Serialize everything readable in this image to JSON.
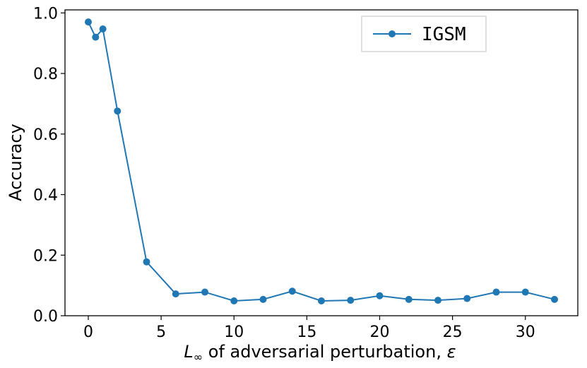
{
  "chart_data": {
    "type": "line",
    "title": "",
    "xlabel": {
      "symbol": "L",
      "subscript": "∞",
      "text": " of adversarial perturbation, ",
      "var": "ε"
    },
    "ylabel": "Accuracy",
    "xlim": [
      -1.6,
      33.6
    ],
    "ylim": [
      0.0,
      1.01
    ],
    "xticks": [
      0,
      5,
      10,
      15,
      20,
      25,
      30
    ],
    "xtick_labels": [
      "0",
      "5",
      "10",
      "15",
      "20",
      "25",
      "30"
    ],
    "yticks": [
      0.0,
      0.2,
      0.4,
      0.6,
      0.8,
      1.0
    ],
    "ytick_labels": [
      "0.0",
      "0.2",
      "0.4",
      "0.6",
      "0.8",
      "1.0"
    ],
    "grid": false,
    "legend_position": "top-right",
    "series": [
      {
        "name": "IGSM",
        "color": "#1f77b4",
        "marker": "circle",
        "x": [
          0,
          0.5,
          1,
          2,
          4,
          6,
          8,
          10,
          12,
          14,
          16,
          18,
          20,
          22,
          24,
          26,
          28,
          30,
          32
        ],
        "y": [
          0.97,
          0.92,
          0.947,
          0.676,
          0.178,
          0.072,
          0.078,
          0.049,
          0.054,
          0.081,
          0.049,
          0.051,
          0.066,
          0.054,
          0.051,
          0.057,
          0.078,
          0.078,
          0.054
        ]
      }
    ]
  }
}
